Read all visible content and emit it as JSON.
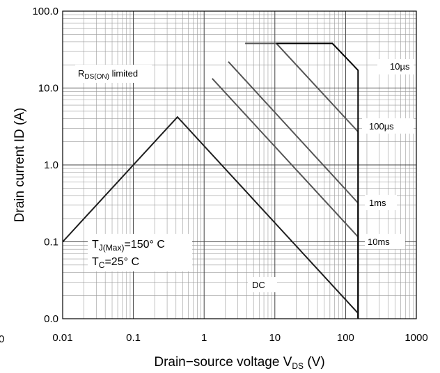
{
  "chart_data": {
    "type": "line",
    "title": "",
    "xlabel": {
      "main": "Drain−source voltage V",
      "sub": "DS",
      "tail": " (V)"
    },
    "ylabel": {
      "main": "Drain current I",
      "sub": "D",
      "tail": " (A)"
    },
    "x_scale": "log",
    "y_scale": "log",
    "xlim": [
      0.01,
      1000
    ],
    "ylim": [
      0.01,
      100
    ],
    "x_ticks": [
      {
        "value": 0.01,
        "label": "0.01"
      },
      {
        "value": 0.1,
        "label": "0.1"
      },
      {
        "value": 1,
        "label": "1"
      },
      {
        "value": 10,
        "label": "10"
      },
      {
        "value": 100,
        "label": "100"
      },
      {
        "value": 1000,
        "label": "1000"
      }
    ],
    "y_ticks": [
      {
        "value": 0.01,
        "label": "0.0"
      },
      {
        "value": 0.1,
        "label": "0.1"
      },
      {
        "value": 1,
        "label": "1.0"
      },
      {
        "value": 10,
        "label": "10.0"
      },
      {
        "value": 100,
        "label": "100.0"
      }
    ],
    "stray_label": "0",
    "grid": true,
    "series": [
      {
        "name": "DC",
        "x": [
          0.01,
          0.42,
          150,
          150
        ],
        "y": [
          0.1,
          4.2,
          0.0118,
          0.01
        ],
        "color": "#1e1e1e"
      },
      {
        "name": "10ms",
        "x": [
          1.3,
          150,
          150
        ],
        "y": [
          13.3,
          0.116,
          0.01
        ],
        "color": "#555555"
      },
      {
        "name": "1ms",
        "x": [
          2.2,
          150,
          150
        ],
        "y": [
          22,
          0.32,
          0.01
        ],
        "color": "#555555"
      },
      {
        "name": "100µs",
        "x": [
          3.8,
          10.5,
          150,
          150
        ],
        "y": [
          38,
          38,
          2.7,
          0.01
        ],
        "color": "#555555"
      },
      {
        "name": "10µs",
        "x": [
          10.5,
          65,
          150,
          150
        ],
        "y": [
          38,
          38,
          17,
          0.01
        ],
        "color": "#000000"
      }
    ],
    "annotations": {
      "rds": {
        "main": "R",
        "sub": "DS(ON)",
        "tail": " limited"
      },
      "tj": {
        "main": "T",
        "sub": "J(Max)",
        "tail": "=150° C"
      },
      "tc": {
        "main": "T",
        "sub": "C",
        "tail": "=25° C"
      },
      "curve_labels": [
        "10µs",
        "100µs",
        "1ms",
        "10ms",
        "DC"
      ]
    }
  }
}
